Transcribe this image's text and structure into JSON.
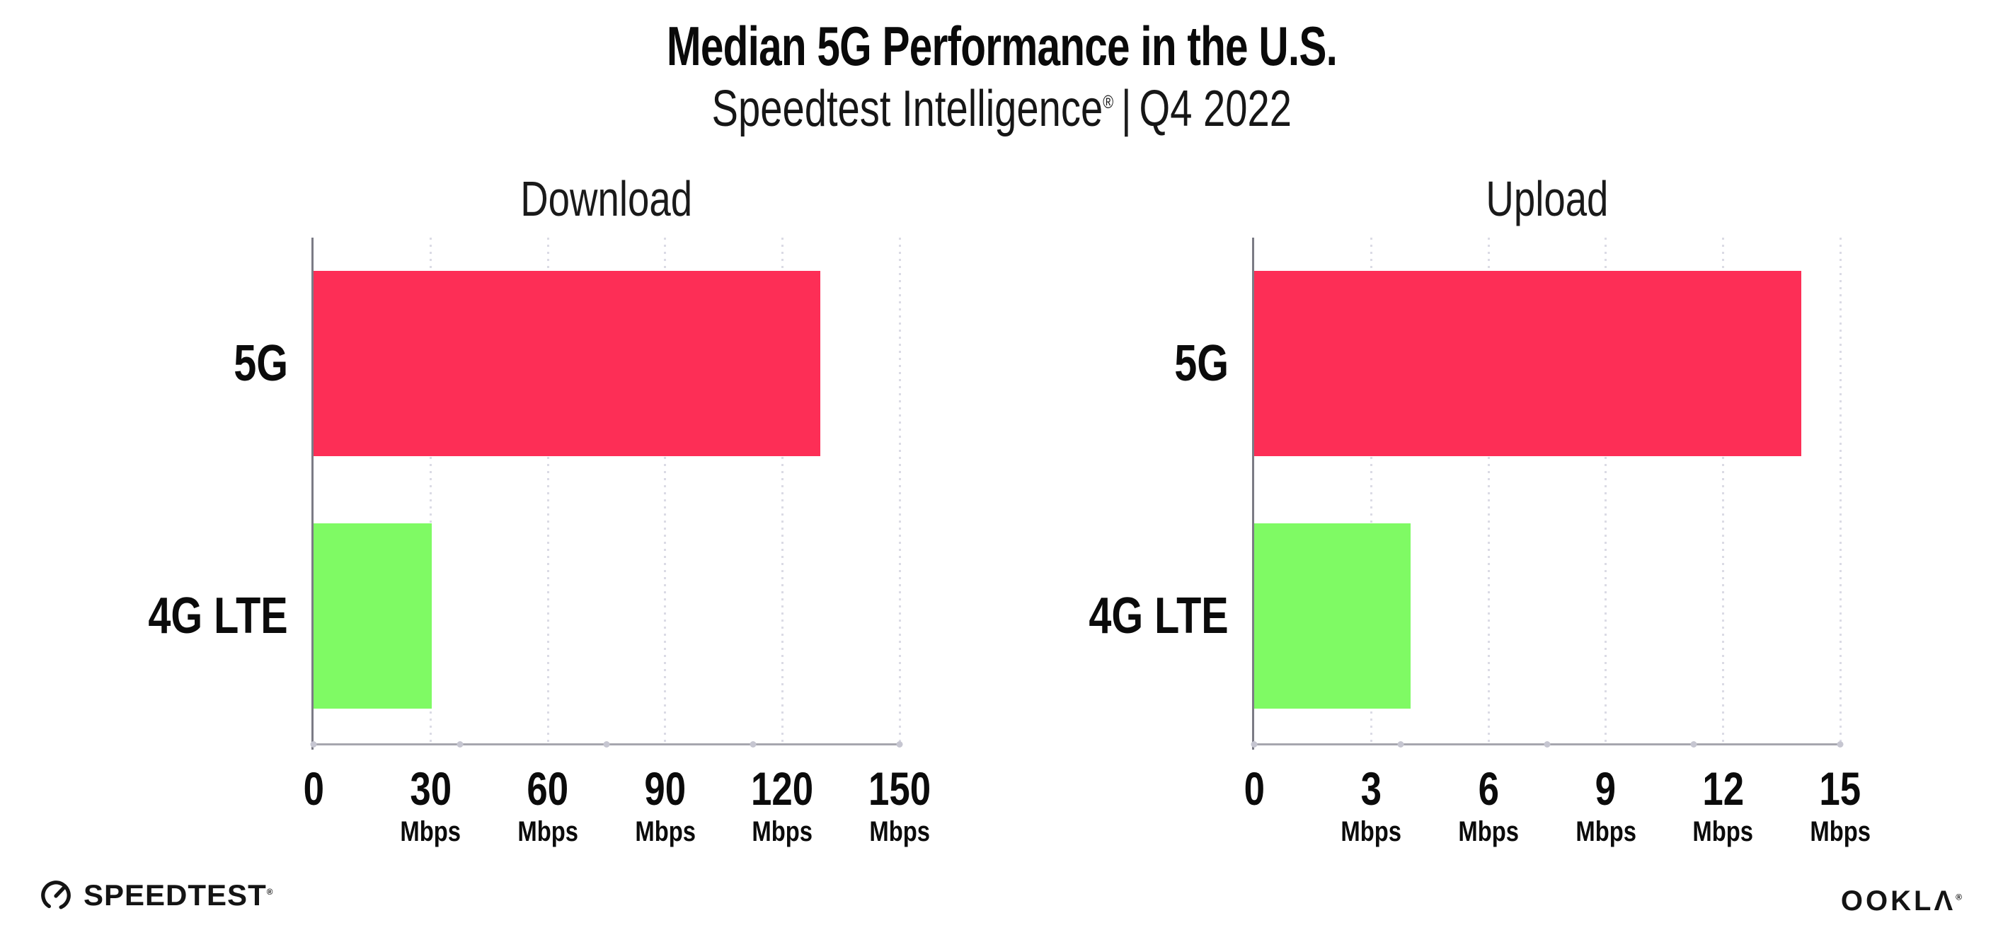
{
  "header": {
    "title": "Median 5G Performance in the U.S.",
    "subtitle": {
      "brand": "Speedtest Intelligence",
      "registered_mark": "®",
      "separator": "|",
      "period": "Q4 2022"
    }
  },
  "chart_data": [
    {
      "type": "bar",
      "orientation": "horizontal",
      "title": "Download",
      "categories": [
        "5G",
        "4G LTE"
      ],
      "values": [
        129.8,
        30.3
      ],
      "unit": "Mbps",
      "xlim": [
        0,
        150
      ],
      "xticks": [
        0,
        30,
        60,
        90,
        120,
        150
      ],
      "xtick_unit_label": "Mbps",
      "bar_colors": [
        "#FD2E56",
        "#7FFA64"
      ],
      "grid": "vertical-dotted",
      "legend": "none"
    },
    {
      "type": "bar",
      "orientation": "horizontal",
      "title": "Upload",
      "categories": [
        "5G",
        "4G LTE"
      ],
      "values": [
        14.0,
        4.0
      ],
      "unit": "Mbps",
      "xlim": [
        0,
        15
      ],
      "xticks": [
        0,
        3,
        6,
        9,
        12,
        15
      ],
      "xtick_unit_label": "Mbps",
      "bar_colors": [
        "#FD2E56",
        "#7FFA64"
      ],
      "grid": "vertical-dotted",
      "legend": "none"
    }
  ],
  "footer": {
    "speedtest_logo_text": "SPEEDTEST",
    "speedtest_mark": "®",
    "ookla_logo_text": "OOKLΛ",
    "ookla_mark": "®"
  },
  "colors": {
    "bar_5g": "#FD2E56",
    "bar_4g_lte": "#7FFA64",
    "y_axis_line": "#7b7b85",
    "baseline": "#a6a6ae",
    "gridline": "#dbdbe5",
    "axis_tick_dot": "#c6c6d1",
    "text": "#0c0c0c",
    "background": "#ffffff"
  }
}
